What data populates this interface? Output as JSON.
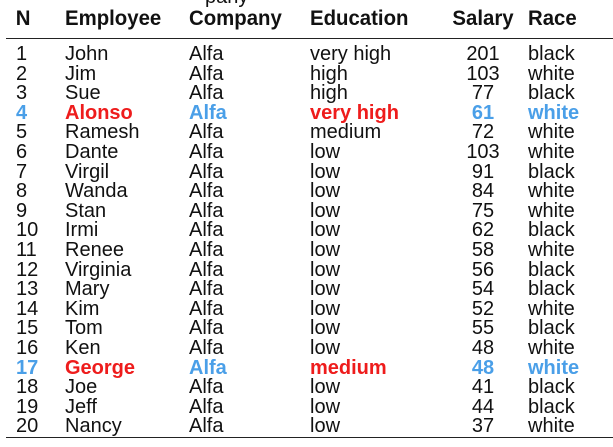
{
  "caption_fragment": "pany",
  "table": {
    "headers": {
      "n": "N",
      "employee": "Employee",
      "company": "Company",
      "education": "Education",
      "salary": "Salary",
      "race": "Race"
    },
    "rows": [
      {
        "n": "1",
        "employee": "John",
        "company": "Alfa",
        "education": "very high",
        "salary": "201",
        "race": "black",
        "highlighted": false
      },
      {
        "n": "2",
        "employee": "Jim",
        "company": "Alfa",
        "education": "high",
        "salary": "103",
        "race": "white",
        "highlighted": false
      },
      {
        "n": "3",
        "employee": "Sue",
        "company": "Alfa",
        "education": "high",
        "salary": "77",
        "race": "black",
        "highlighted": false
      },
      {
        "n": "4",
        "employee": "Alonso",
        "company": "Alfa",
        "education": "very high",
        "salary": "61",
        "race": "white",
        "highlighted": true
      },
      {
        "n": "5",
        "employee": "Ramesh",
        "company": "Alfa",
        "education": "medium",
        "salary": "72",
        "race": "white",
        "highlighted": false
      },
      {
        "n": "6",
        "employee": "Dante",
        "company": "Alfa",
        "education": "low",
        "salary": "103",
        "race": "white",
        "highlighted": false
      },
      {
        "n": "7",
        "employee": "Virgil",
        "company": "Alfa",
        "education": "low",
        "salary": "91",
        "race": "black",
        "highlighted": false
      },
      {
        "n": "8",
        "employee": "Wanda",
        "company": "Alfa",
        "education": "low",
        "salary": "84",
        "race": "white",
        "highlighted": false
      },
      {
        "n": "9",
        "employee": "Stan",
        "company": "Alfa",
        "education": "low",
        "salary": "75",
        "race": "white",
        "highlighted": false
      },
      {
        "n": "10",
        "employee": "Irmi",
        "company": "Alfa",
        "education": "low",
        "salary": "62",
        "race": "black",
        "highlighted": false
      },
      {
        "n": "11",
        "employee": "Renee",
        "company": "Alfa",
        "education": "low",
        "salary": "58",
        "race": "white",
        "highlighted": false
      },
      {
        "n": "12",
        "employee": "Virginia",
        "company": "Alfa",
        "education": "low",
        "salary": "56",
        "race": "black",
        "highlighted": false
      },
      {
        "n": "13",
        "employee": "Mary",
        "company": "Alfa",
        "education": "low",
        "salary": "54",
        "race": "black",
        "highlighted": false
      },
      {
        "n": "14",
        "employee": "Kim",
        "company": "Alfa",
        "education": "low",
        "salary": "52",
        "race": "white",
        "highlighted": false
      },
      {
        "n": "15",
        "employee": "Tom",
        "company": "Alfa",
        "education": "low",
        "salary": "55",
        "race": "black",
        "highlighted": false
      },
      {
        "n": "16",
        "employee": "Ken",
        "company": "Alfa",
        "education": "low",
        "salary": "48",
        "race": "white",
        "highlighted": false
      },
      {
        "n": "17",
        "employee": "George",
        "company": "Alfa",
        "education": "medium",
        "salary": "48",
        "race": "white",
        "highlighted": true
      },
      {
        "n": "18",
        "employee": "Joe",
        "company": "Alfa",
        "education": "low",
        "salary": "41",
        "race": "black",
        "highlighted": false
      },
      {
        "n": "19",
        "employee": "Jeff",
        "company": "Alfa",
        "education": "low",
        "salary": "44",
        "race": "black",
        "highlighted": false
      },
      {
        "n": "20",
        "employee": "Nancy",
        "company": "Alfa",
        "education": "low",
        "salary": "37",
        "race": "white",
        "highlighted": false
      }
    ]
  },
  "colors": {
    "highlight_blue": "#4a9fe8",
    "highlight_red": "#ee1c1c"
  }
}
